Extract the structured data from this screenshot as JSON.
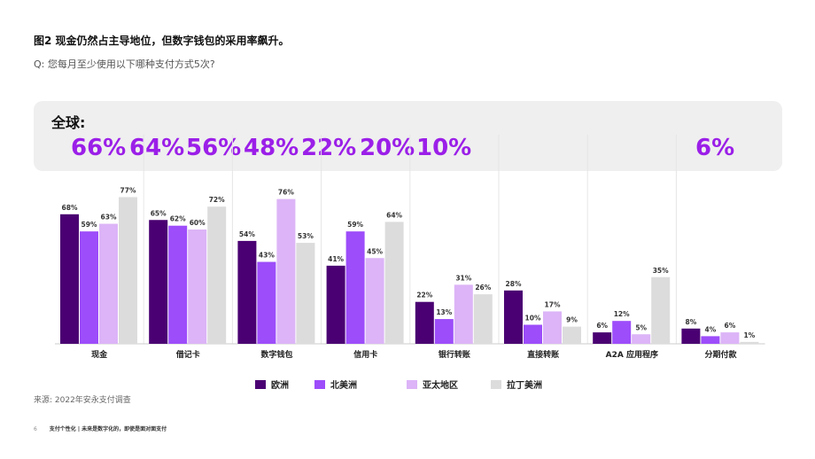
{
  "title": "图2 现金仍然占主导地位，但数字钱包的采用率飙升。",
  "question": "Q: 您每月至少使用以下哪种支付方式5次?",
  "global_label": "全球:",
  "global_values": [
    "66%",
    "64%",
    "56%",
    "48%",
    "22%",
    "20%",
    "10%",
    "6%"
  ],
  "source": "来源:   2022年安永支付调查",
  "footer": {
    "page": "6",
    "text": "支付个性化 | 未来是数字化的，即使是面对面支付"
  },
  "colors": {
    "europe": "#4a0072",
    "north_america": "#9d4dfa",
    "apac": "#dcb4f7",
    "latam": "#dcdcdc",
    "accent": "#9b1fe8"
  },
  "chart_data": {
    "type": "bar",
    "categories": [
      "现金",
      "借记卡",
      "数字钱包",
      "信用卡",
      "银行转账",
      "直接转账",
      "A2A 应用程序",
      "分期付款"
    ],
    "series": [
      {
        "name": "欧洲",
        "values": [
          68,
          65,
          54,
          41,
          22,
          28,
          6,
          8
        ]
      },
      {
        "name": "北美洲",
        "values": [
          59,
          62,
          43,
          59,
          13,
          10,
          12,
          4
        ]
      },
      {
        "name": "亚太地区",
        "values": [
          63,
          60,
          76,
          45,
          31,
          17,
          5,
          6
        ]
      },
      {
        "name": "拉丁美洲",
        "values": [
          77,
          72,
          53,
          64,
          26,
          9,
          35,
          1
        ]
      }
    ],
    "ylim": [
      0,
      100
    ],
    "grid": false,
    "legend_position": "bottom"
  }
}
